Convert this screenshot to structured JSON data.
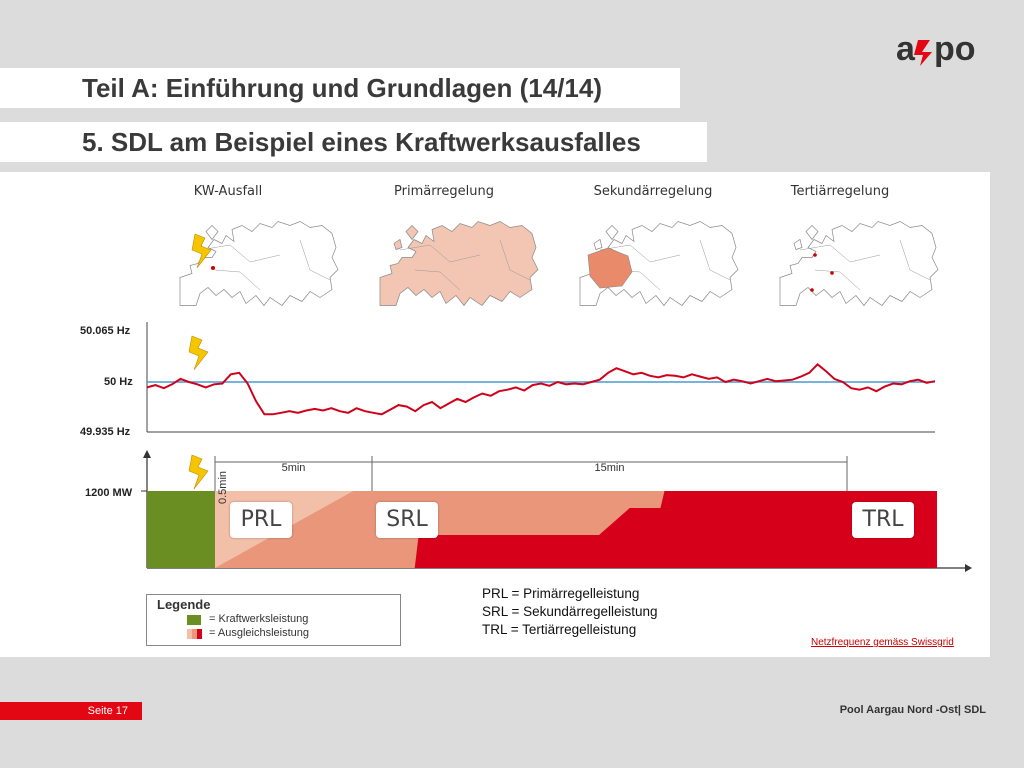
{
  "header": {
    "title": "Teil A:  Einführung und Grundlagen (14/14)",
    "subtitle": "5. SDL am Beispiel eines Kraftwerksausfalles",
    "logo_text": "axpo"
  },
  "maps": [
    {
      "label": "KW-Ausfall"
    },
    {
      "label": "Primärregelung"
    },
    {
      "label": "Sekundärregelung"
    },
    {
      "label": "Tertiärregelung"
    }
  ],
  "chart_data": [
    {
      "type": "line",
      "y_ticks": [
        "50.065 Hz",
        "50 Hz",
        "49.935 Hz"
      ],
      "ylim": [
        49.935,
        50.065
      ],
      "reference_line": 50.0,
      "series": [
        {
          "values": [
            49.993,
            49.996,
            49.992,
            49.997,
            50.004,
            50.0,
            49.997,
            49.993,
            49.997,
            49.998,
            50.01,
            50.012,
            49.998,
            49.975,
            49.958,
            49.958,
            49.96,
            49.962,
            49.96,
            49.963,
            49.965,
            49.963,
            49.966,
            49.962,
            49.96,
            49.966,
            49.962,
            49.96,
            49.958,
            49.964,
            49.97,
            49.968,
            49.962,
            49.97,
            49.974,
            49.966,
            49.972,
            49.978,
            49.974,
            49.98,
            49.985,
            49.982,
            49.988,
            49.99,
            49.993,
            49.989,
            49.996,
            49.998,
            49.995,
            50.0,
            49.997,
            49.998,
            49.997,
            50.0,
            50.003,
            50.012,
            50.018,
            50.014,
            50.01,
            50.012,
            50.008,
            50.006,
            50.009,
            50.008,
            50.006,
            50.01,
            50.007,
            50.004,
            50.006,
            50.0,
            50.003,
            50.001,
            49.998,
            50.001,
            50.004,
            50.001,
            50.002,
            50.003,
            50.007,
            50.012,
            50.023,
            50.014,
            50.004,
            50.0,
            49.992,
            49.99,
            49.993,
            49.988,
            49.994,
            49.998,
            49.997,
            50.001,
            50.003,
            49.999,
            50.001
          ]
        }
      ]
    },
    {
      "type": "area",
      "y_tick": "1200 MW",
      "time_markers": [
        "0.5min",
        "5min",
        "15min"
      ],
      "regions": [
        {
          "name": "PRL",
          "start_min": 0.5,
          "peak_min": 5,
          "end_min": 9,
          "color": "#f2bfa8"
        },
        {
          "name": "SRL",
          "start_min": 0.5,
          "peak_min": 5,
          "end_min": 20,
          "color": "#e9967a"
        },
        {
          "name": "TRL",
          "start_min": 7,
          "peak_min": 15,
          "end_min": 24,
          "color": "#d7001a"
        }
      ],
      "kraftwerk_color": "#6b8e23"
    }
  ],
  "legend": {
    "title": "Legende",
    "items": [
      {
        "symbol": "=",
        "label": "Kraftwerksleistung"
      },
      {
        "symbol": "=",
        "label": "Ausgleichsleistung"
      }
    ]
  },
  "abbreviations": [
    "PRL = Primärregelleistung",
    "SRL = Sekundärregelleistung",
    "TRL = Tertiärregelleistung"
  ],
  "source_note": "Netzfrequenz gemäss Swissgrid",
  "footer": {
    "page": "Seite 17",
    "right": "Pool Aargau Nord -Ost| SDL"
  }
}
